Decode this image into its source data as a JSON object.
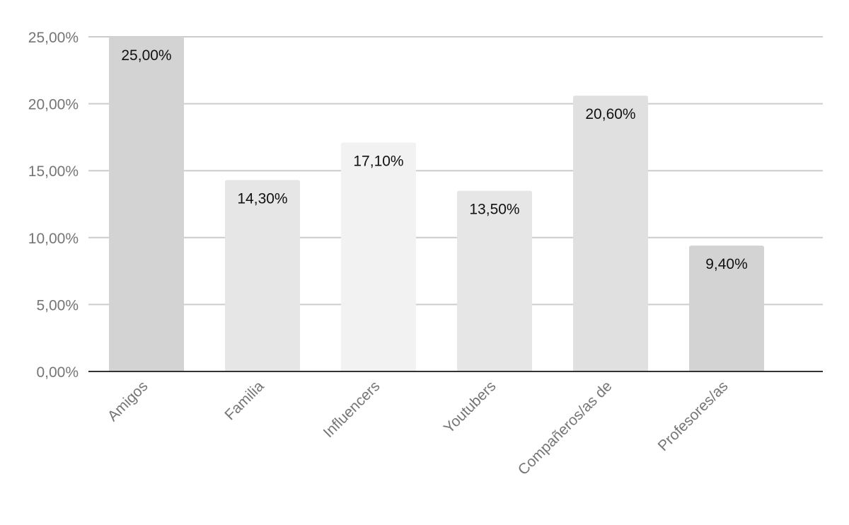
{
  "chart_data": {
    "type": "bar",
    "categories": [
      "Amigos",
      "Familia",
      "Influencers",
      "Youtubers",
      "Compañeros/as de",
      "Profesores/as"
    ],
    "values": [
      25.0,
      14.3,
      17.1,
      13.5,
      20.6,
      9.4
    ],
    "data_labels": [
      "25,00%",
      "14,30%",
      "17,10%",
      "13,50%",
      "20,60%",
      "9,40%"
    ],
    "bar_colors": [
      "#d3d3d3",
      "#e6e6e6",
      "#f2f2f2",
      "#e6e6e6",
      "#e0e0e0",
      "#d3d3d3"
    ],
    "y_ticks": [
      0,
      5,
      10,
      15,
      20,
      25
    ],
    "y_tick_labels": [
      "0,00%",
      "5,00%",
      "10,00%",
      "15,00%",
      "20,00%",
      "25,00%"
    ],
    "ylim": [
      0,
      25
    ],
    "grid": true,
    "legend": "none",
    "title": "",
    "xlabel": "",
    "ylabel": ""
  }
}
